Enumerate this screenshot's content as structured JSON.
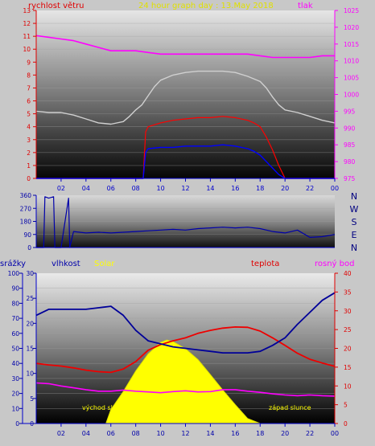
{
  "chart_data": [
    {
      "type": "line",
      "title": "24 hour graph day : 13.May 2018",
      "ylabel_left": "rychlost větru",
      "ylabel_right": "tlak",
      "x_ticks": [
        "02",
        "04",
        "06",
        "08",
        "10",
        "12",
        "14",
        "16",
        "18",
        "20",
        "22",
        "00"
      ],
      "y_left_ticks": [
        "0",
        "1",
        "2",
        "3",
        "4",
        "5",
        "6",
        "7",
        "8",
        "9",
        "10",
        "11",
        "12",
        "13"
      ],
      "y_right_ticks": [
        "975",
        "980",
        "985",
        "990",
        "995",
        "1000",
        "1005",
        "1010",
        "1015",
        "1020",
        "1025"
      ],
      "ylim_left": [
        0,
        13
      ],
      "ylim_right": [
        975,
        1025
      ],
      "series": [
        {
          "name": "tlak",
          "color": "#ff00ff",
          "axis": "right",
          "x": [
            0,
            2,
            3,
            4,
            5,
            6,
            7,
            8,
            9,
            10,
            11,
            12,
            13,
            14,
            15,
            16,
            17,
            18,
            19,
            20,
            21,
            22,
            23,
            24
          ],
          "y": [
            1017.5,
            1016.5,
            1016,
            1015,
            1014,
            1013,
            1013,
            1013,
            1012.5,
            1012,
            1012,
            1012,
            1012,
            1012,
            1012,
            1012,
            1012,
            1011.5,
            1011,
            1011,
            1011,
            1011,
            1011.5,
            1011.5
          ]
        },
        {
          "color": "#d0d0d0",
          "axis": "left",
          "x": [
            0,
            1,
            2,
            3,
            4,
            5,
            6,
            7,
            7.5,
            8,
            8.5,
            9,
            9.5,
            10,
            11,
            12,
            13,
            14,
            15,
            16,
            17,
            18,
            18.5,
            19,
            19.5,
            20,
            21,
            22,
            23,
            24
          ],
          "y": [
            5.2,
            5.1,
            5.1,
            4.9,
            4.6,
            4.3,
            4.2,
            4.4,
            4.8,
            5.3,
            5.7,
            6.4,
            7.1,
            7.6,
            8.0,
            8.2,
            8.3,
            8.3,
            8.3,
            8.2,
            7.9,
            7.5,
            7.0,
            6.3,
            5.7,
            5.3,
            5.1,
            4.8,
            4.5,
            4.3
          ]
        },
        {
          "color": "#ff0000",
          "axis": "left",
          "x": [
            0,
            8.6,
            8.8,
            9,
            10,
            11,
            12,
            13,
            14,
            15,
            16,
            17,
            17.5,
            18,
            18.5,
            19,
            19.5,
            20,
            24
          ],
          "y": [
            0,
            0,
            3.6,
            4.0,
            4.3,
            4.5,
            4.6,
            4.7,
            4.7,
            4.8,
            4.7,
            4.5,
            4.3,
            4.0,
            3.2,
            2.2,
            1.0,
            0,
            0
          ]
        },
        {
          "color": "#0000ff",
          "axis": "left",
          "x": [
            0,
            8.6,
            8.8,
            9,
            10,
            11,
            12,
            13,
            14,
            15,
            16,
            17,
            17.5,
            18,
            18.5,
            19,
            19.5,
            20,
            24
          ],
          "y": [
            0,
            0,
            2.0,
            2.3,
            2.4,
            2.4,
            2.5,
            2.5,
            2.5,
            2.6,
            2.5,
            2.3,
            2.1,
            1.8,
            1.3,
            0.8,
            0.3,
            0,
            0
          ]
        }
      ]
    },
    {
      "type": "line",
      "ylabel_right": [
        "N",
        "W",
        "S",
        "E",
        "N"
      ],
      "x_ticks": [],
      "y_left_ticks": [
        "0",
        "90",
        "180",
        "270",
        "360"
      ],
      "ylim": [
        0,
        360
      ],
      "series": [
        {
          "color": "#0000aa",
          "x": [
            0,
            0.6,
            0.7,
            1,
            1.4,
            1.5,
            2,
            2.6,
            2.7,
            3,
            4,
            5,
            6,
            7,
            8,
            9,
            10,
            11,
            12,
            13,
            14,
            15,
            16,
            17,
            18,
            19,
            20,
            21,
            22,
            23,
            24
          ],
          "y": [
            0,
            0,
            350,
            340,
            350,
            0,
            0,
            340,
            0,
            110,
            100,
            105,
            100,
            105,
            110,
            115,
            120,
            125,
            120,
            130,
            135,
            140,
            135,
            140,
            130,
            110,
            100,
            120,
            70,
            75,
            90
          ]
        }
      ]
    },
    {
      "type": "area",
      "labels": {
        "srazky": "srážky",
        "vlhkost": "vlhkost",
        "solar": "Solar",
        "teplota": "teplota",
        "rosny_bod": "rosný bod",
        "vychod": "východ slunce",
        "zapad": "západ slunce"
      },
      "x_ticks": [
        "02",
        "04",
        "06",
        "08",
        "10",
        "12",
        "14",
        "16",
        "18",
        "20",
        "22",
        "00"
      ],
      "y_axis_srazky_ticks": [
        "0",
        "10",
        "20",
        "30",
        "40",
        "50",
        "60",
        "70",
        "80",
        "90",
        "100"
      ],
      "y_axis_vlhkost_ticks": [
        "0",
        "5",
        "10",
        "15",
        "20",
        "25",
        "30"
      ],
      "y_axis_teplota_ticks": [
        "0",
        "5",
        "10",
        "15",
        "20",
        "25",
        "30",
        "35",
        "40"
      ],
      "ylim_vlhkost": [
        0,
        100
      ],
      "ylim_temp": [
        0,
        40
      ],
      "series": [
        {
          "name": "vlhkost",
          "color": "#000099",
          "axis": "vlhkost",
          "x": [
            0,
            1,
            2,
            3,
            4,
            5,
            6,
            7,
            8,
            9,
            10,
            11,
            12,
            13,
            14,
            15,
            16,
            17,
            18,
            19,
            20,
            21,
            22,
            23,
            24
          ],
          "y": [
            72,
            76,
            76,
            76,
            76,
            77,
            78,
            72,
            62,
            55,
            53,
            51,
            50,
            49,
            48,
            47,
            47,
            47,
            48,
            52,
            57,
            66,
            74,
            82,
            87
          ]
        },
        {
          "name": "teplota",
          "color": "#ee0000",
          "axis": "temp",
          "x": [
            0,
            1,
            2,
            3,
            4,
            5,
            6,
            7,
            8,
            9,
            10,
            11,
            12,
            13,
            14,
            15,
            16,
            17,
            18,
            19,
            20,
            21,
            22,
            23,
            24
          ],
          "y": [
            16,
            15.6,
            15.3,
            14.8,
            14.2,
            13.8,
            13.6,
            14.5,
            16.5,
            19.5,
            21,
            22,
            22.8,
            24,
            24.8,
            25.4,
            25.7,
            25.6,
            24.6,
            22.8,
            20.8,
            18.7,
            17.1,
            16.1,
            15.2
          ]
        },
        {
          "name": "rosný bod",
          "color": "#ff00ff",
          "axis": "temp",
          "x": [
            0,
            1,
            2,
            3,
            4,
            5,
            6,
            7,
            8,
            9,
            10,
            11,
            12,
            13,
            14,
            15,
            16,
            17,
            18,
            19,
            20,
            21,
            22,
            23,
            24
          ],
          "y": [
            10.8,
            10.6,
            10,
            9.5,
            9,
            8.6,
            8.6,
            8.9,
            8.6,
            8.4,
            8.2,
            8.5,
            8.7,
            8.4,
            8.5,
            9,
            9,
            8.6,
            8.3,
            7.9,
            7.6,
            7.4,
            7.6,
            7.4,
            7.3
          ]
        },
        {
          "name": "Solar",
          "color": "#ffff00",
          "axis": "temp",
          "x": [
            5.6,
            6,
            7,
            8,
            9,
            10,
            10.5,
            11,
            12,
            13,
            14,
            15,
            16,
            17,
            18
          ],
          "y": [
            0,
            3.7,
            8.5,
            14,
            18.5,
            21.6,
            22.2,
            21.8,
            19.9,
            17,
            13,
            8.9,
            5,
            1.3,
            0
          ]
        }
      ]
    }
  ]
}
